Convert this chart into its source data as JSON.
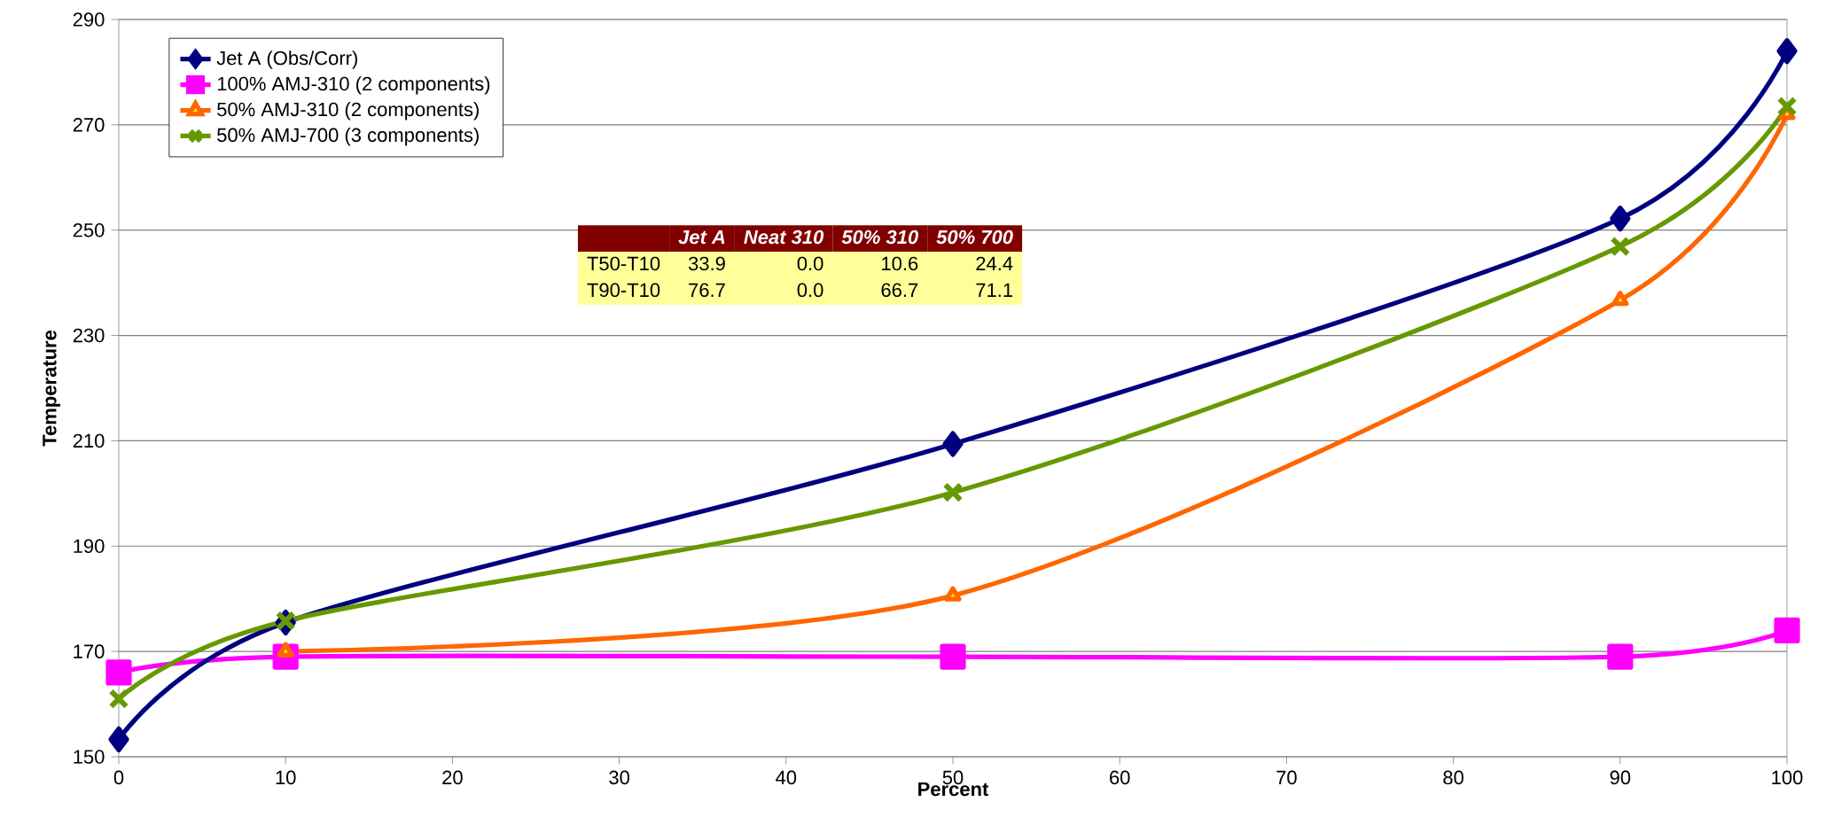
{
  "chart_data": {
    "type": "line",
    "xlabel": "Percent",
    "ylabel": "Temperature",
    "x": [
      0,
      10,
      50,
      90,
      100
    ],
    "series": [
      {
        "name": "Jet A (Obs/Corr)",
        "color": "#000080",
        "marker": "diamond",
        "values": [
          153.3,
          175.5,
          209.4,
          252.2,
          284
        ]
      },
      {
        "name": "100% AMJ-310 (2 components)",
        "color": "#ff00ff",
        "marker": "square",
        "values": [
          166,
          169,
          169,
          169,
          174
        ]
      },
      {
        "name": "50% AMJ-310 (2 components)",
        "color": "#ff6600",
        "marker": "triangle",
        "values": [
          null,
          170,
          180.6,
          236.7,
          272
        ]
      },
      {
        "name": "50% AMJ-700 (3 components)",
        "color": "#669900",
        "marker": "cross",
        "values": [
          161,
          175.8,
          200.2,
          246.9,
          273.5
        ]
      }
    ],
    "xlim": [
      0,
      100
    ],
    "xticks": [
      0,
      10,
      20,
      30,
      40,
      50,
      60,
      70,
      80,
      90,
      100
    ],
    "ylim": [
      150,
      290
    ],
    "yticks": [
      150,
      170,
      190,
      210,
      230,
      250,
      270,
      290
    ],
    "grid": "y",
    "legend": "top left",
    "annotations": [
      "Jet A",
      "Neat 310",
      "50% 310",
      "50% 700",
      "T50-T10",
      "33.9",
      "0.0",
      "10.6",
      "24.4",
      "T90-T10",
      "76.7",
      "0.0",
      "66.7",
      "71.1"
    ]
  }
}
